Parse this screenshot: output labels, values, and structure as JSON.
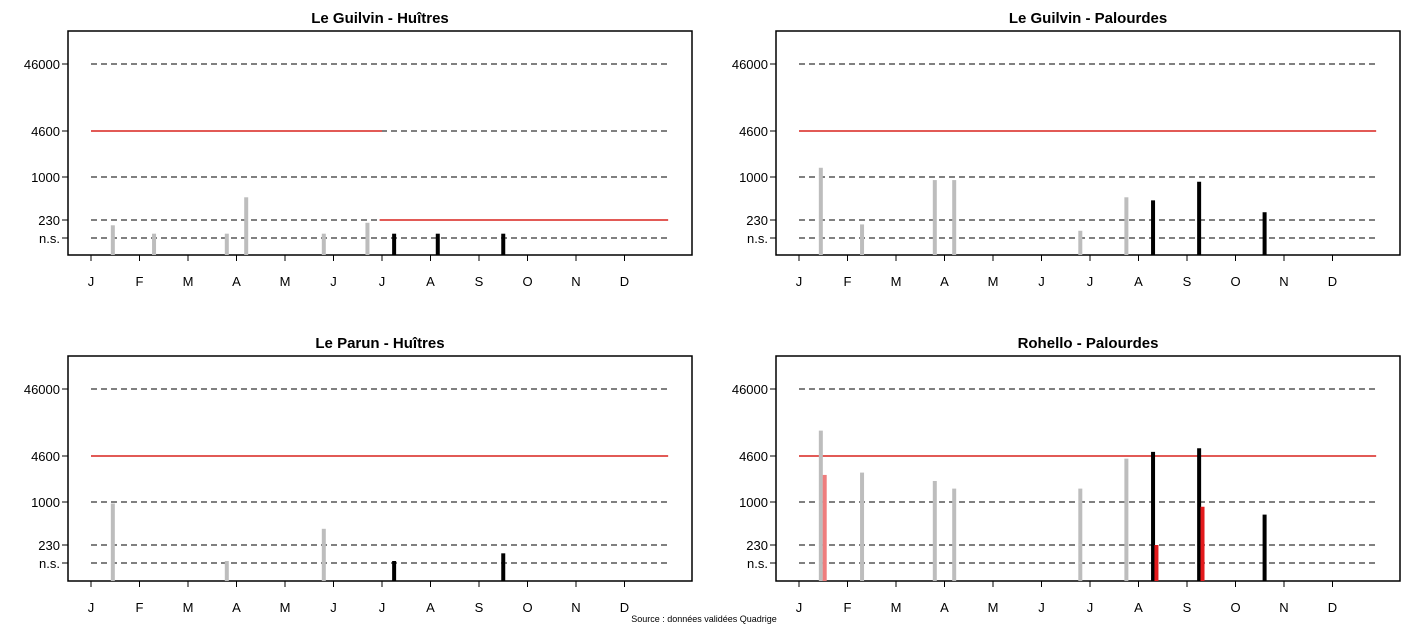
{
  "source": "Source : données validées Quadrige",
  "colors": {
    "threshold_line": "#000000",
    "alert_line": "#d9231f",
    "past_bar": "#bdbdbd",
    "current_bar": "#000000",
    "alert_bar_past": "#ee7d7d",
    "alert_bar_current": "#e31a1c"
  },
  "chart_data": [
    {
      "type": "bar",
      "title": "Le Guilvin - Huîtres",
      "x_ticks": [
        "J",
        "F",
        "M",
        "A",
        "M",
        "J",
        "J",
        "A",
        "S",
        "O",
        "N",
        "D"
      ],
      "y_ticks": [
        "n.s.",
        "230",
        "1000",
        "4600",
        "46000"
      ],
      "y_values": [
        67,
        230,
        1000,
        4600,
        46000
      ],
      "y_scale": "log",
      "grid": "dashed thresholds",
      "red_lines": [
        {
          "y": 4600,
          "x_from": 1,
          "x_to": 7.0
        },
        {
          "y": 230,
          "x_from": 6.95,
          "x_to": 12.9
        }
      ],
      "bars": [
        {
          "x": 1.45,
          "value": 160,
          "period": "past"
        },
        {
          "x": 2.3,
          "value": 90,
          "period": "past"
        },
        {
          "x": 3.8,
          "value": 90,
          "period": "past"
        },
        {
          "x": 4.2,
          "value": 500,
          "period": "past"
        },
        {
          "x": 5.8,
          "value": 90,
          "period": "past"
        },
        {
          "x": 6.7,
          "value": 190,
          "period": "past"
        },
        {
          "x": 7.25,
          "value": 90,
          "period": "current"
        },
        {
          "x": 8.15,
          "value": 90,
          "period": "current"
        },
        {
          "x": 9.5,
          "value": 90,
          "period": "current"
        }
      ]
    },
    {
      "type": "bar",
      "title": "Le Guilvin - Palourdes",
      "x_ticks": [
        "J",
        "F",
        "M",
        "A",
        "M",
        "J",
        "J",
        "A",
        "S",
        "O",
        "N",
        "D"
      ],
      "y_ticks": [
        "n.s.",
        "230",
        "1000",
        "4600",
        "46000"
      ],
      "y_values": [
        67,
        230,
        1000,
        4600,
        46000
      ],
      "y_scale": "log",
      "grid": "dashed thresholds",
      "red_lines": [
        {
          "y": 4600,
          "x_from": 1,
          "x_to": 12.9
        }
      ],
      "bars": [
        {
          "x": 1.45,
          "value": 1300,
          "period": "past"
        },
        {
          "x": 2.3,
          "value": 170,
          "period": "past"
        },
        {
          "x": 3.8,
          "value": 900,
          "period": "past"
        },
        {
          "x": 4.2,
          "value": 900,
          "period": "past"
        },
        {
          "x": 6.8,
          "value": 110,
          "period": "past"
        },
        {
          "x": 7.75,
          "value": 500,
          "period": "past"
        },
        {
          "x": 8.3,
          "value": 450,
          "period": "current"
        },
        {
          "x": 9.25,
          "value": 850,
          "period": "current"
        },
        {
          "x": 10.6,
          "value": 300,
          "period": "current"
        }
      ]
    },
    {
      "type": "bar",
      "title": "Le Parun - Huîtres",
      "x_ticks": [
        "J",
        "F",
        "M",
        "A",
        "M",
        "J",
        "J",
        "A",
        "S",
        "O",
        "N",
        "D"
      ],
      "y_ticks": [
        "n.s.",
        "230",
        "1000",
        "4600",
        "46000"
      ],
      "y_values": [
        67,
        230,
        1000,
        4600,
        46000
      ],
      "y_scale": "log",
      "grid": "dashed thresholds",
      "red_lines": [
        {
          "y": 4600,
          "x_from": 1,
          "x_to": 12.9
        }
      ],
      "bars": [
        {
          "x": 1.45,
          "value": 950,
          "period": "past"
        },
        {
          "x": 3.8,
          "value": 70,
          "period": "past"
        },
        {
          "x": 5.8,
          "value": 400,
          "period": "past"
        },
        {
          "x": 7.25,
          "value": 70,
          "period": "current"
        },
        {
          "x": 9.5,
          "value": 130,
          "period": "current"
        }
      ]
    },
    {
      "type": "bar",
      "title": "Rohello - Palourdes",
      "x_ticks": [
        "J",
        "F",
        "M",
        "A",
        "M",
        "J",
        "J",
        "A",
        "S",
        "O",
        "N",
        "D"
      ],
      "y_ticks": [
        "n.s.",
        "230",
        "1000",
        "4600",
        "46000"
      ],
      "y_values": [
        67,
        230,
        1000,
        4600,
        46000
      ],
      "y_scale": "log",
      "grid": "dashed thresholds",
      "red_lines": [
        {
          "y": 4600,
          "x_from": 1,
          "x_to": 12.9
        }
      ],
      "bars": [
        {
          "x": 1.45,
          "value": 11000,
          "period": "past"
        },
        {
          "x": 1.53,
          "value": 2400,
          "period": "past_alert"
        },
        {
          "x": 2.3,
          "value": 2600,
          "period": "past"
        },
        {
          "x": 3.8,
          "value": 1950,
          "period": "past"
        },
        {
          "x": 4.2,
          "value": 1500,
          "period": "past"
        },
        {
          "x": 6.8,
          "value": 1500,
          "period": "past"
        },
        {
          "x": 7.75,
          "value": 4200,
          "period": "past"
        },
        {
          "x": 8.3,
          "value": 5300,
          "period": "current"
        },
        {
          "x": 8.37,
          "value": 230,
          "period": "current_alert"
        },
        {
          "x": 9.25,
          "value": 6000,
          "period": "current"
        },
        {
          "x": 9.32,
          "value": 850,
          "period": "current_alert"
        },
        {
          "x": 10.6,
          "value": 650,
          "period": "current"
        }
      ]
    }
  ]
}
